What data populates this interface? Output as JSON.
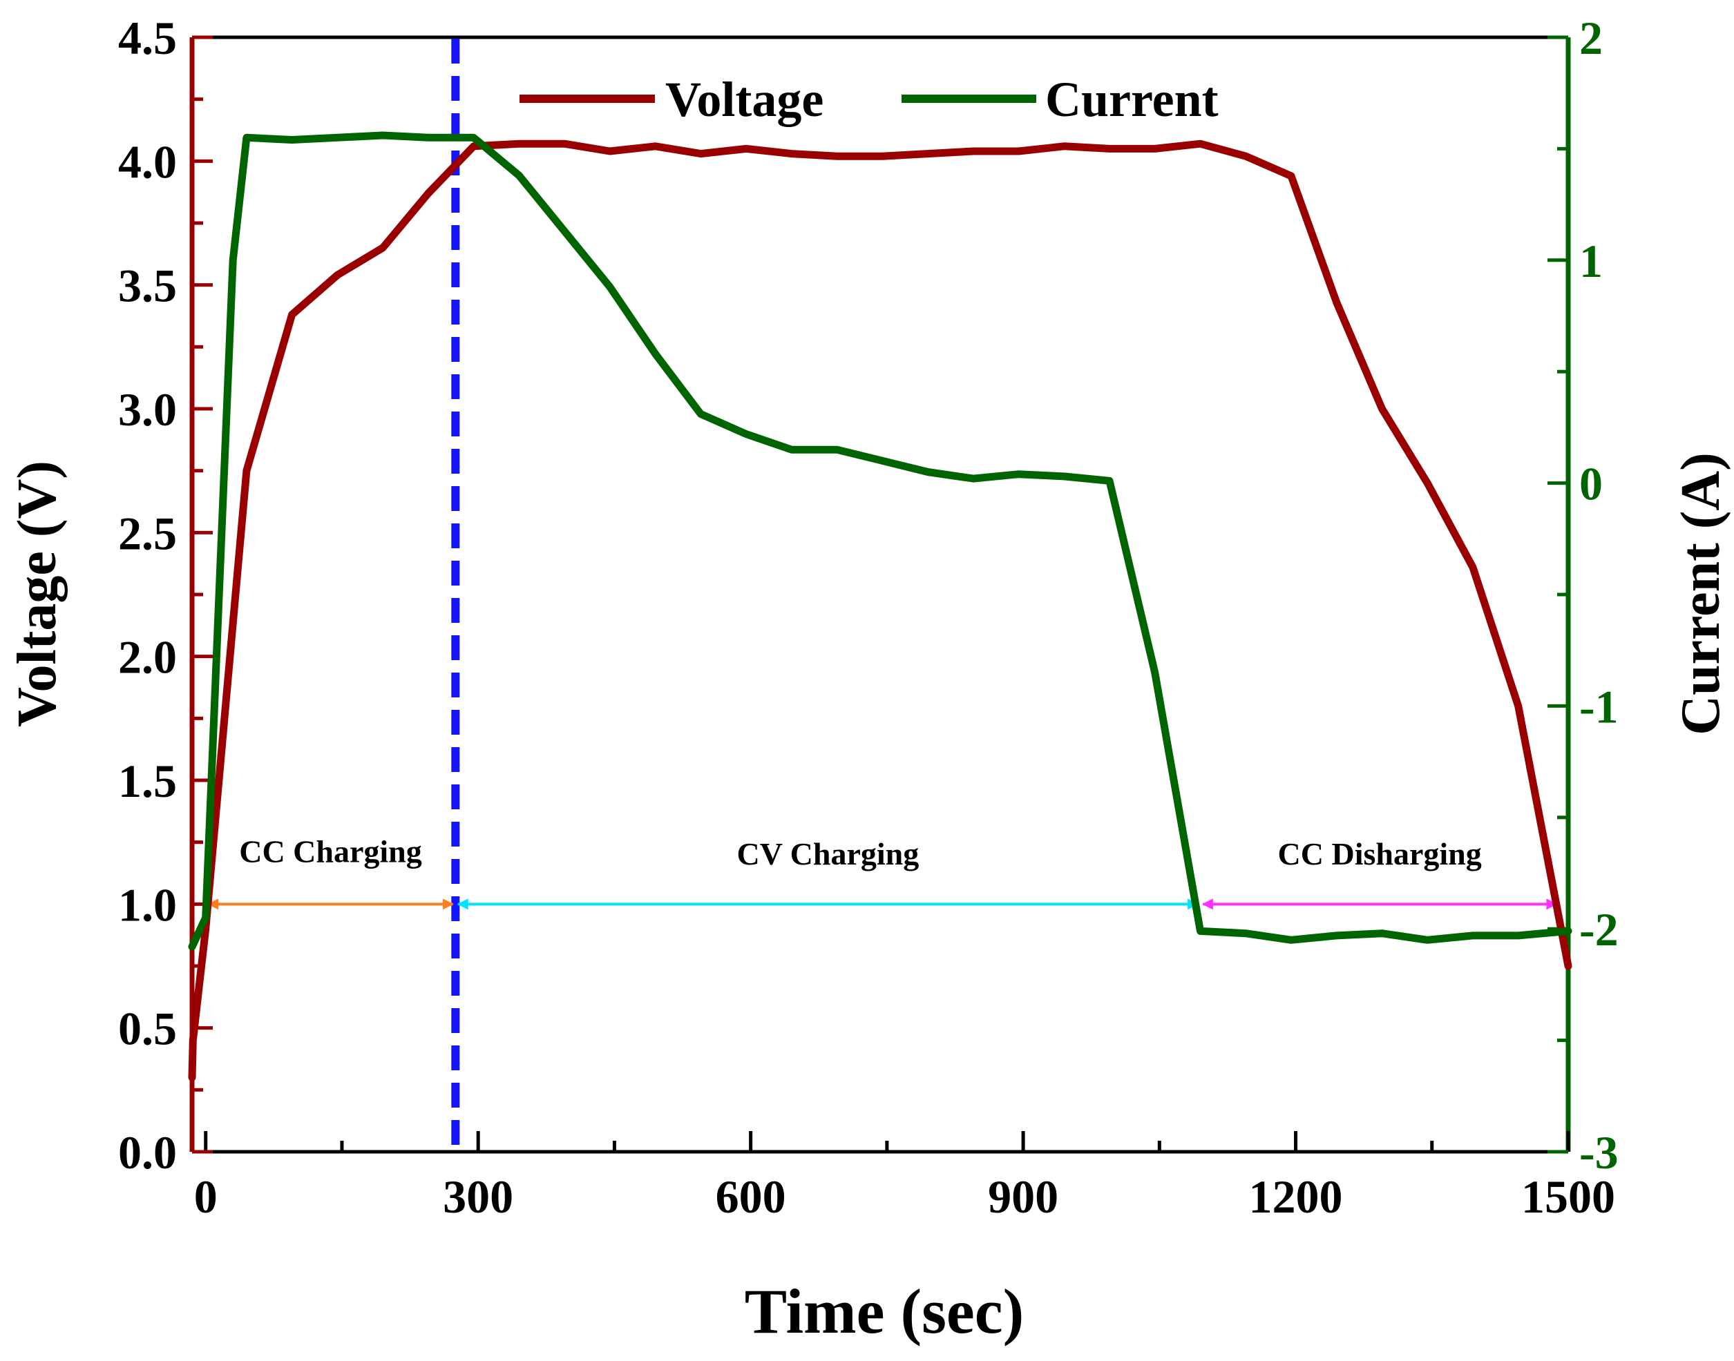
{
  "chart_data": {
    "type": "line",
    "xlabel": "Time (sec)",
    "xlim": [
      -15,
      1500
    ],
    "xticks": [
      0,
      300,
      600,
      900,
      1200,
      1500
    ],
    "y_left": {
      "label": "Voltage (V)",
      "range": [
        0,
        4.5
      ],
      "ticks": [
        "0.0",
        "0.5",
        "1.0",
        "1.5",
        "2.0",
        "2.5",
        "3.0",
        "3.5",
        "4.0",
        "4.5"
      ],
      "color": "#9b0000"
    },
    "y_right": {
      "label": "Current (A)",
      "range": [
        -3,
        2
      ],
      "ticks": [
        "-3",
        "-2",
        "-1",
        "0",
        "1",
        "2"
      ],
      "color": "#006400"
    },
    "legend": {
      "position": "top-center",
      "entries": [
        "Voltage",
        "Current"
      ]
    },
    "series": [
      {
        "name": "Voltage",
        "axis": "left",
        "color": "#9b0000",
        "x": [
          -15,
          -14,
          0,
          45,
          95,
          145,
          195,
          245,
          295,
          345,
          395,
          445,
          495,
          545,
          595,
          645,
          695,
          745,
          795,
          845,
          895,
          945,
          995,
          1045,
          1095,
          1145,
          1195,
          1245,
          1295,
          1345,
          1395,
          1445,
          1500
        ],
        "values": [
          0.3,
          0.45,
          0.9,
          2.75,
          3.38,
          3.54,
          3.65,
          3.87,
          4.06,
          4.07,
          4.07,
          4.04,
          4.06,
          4.03,
          4.05,
          4.03,
          4.02,
          4.02,
          4.03,
          4.04,
          4.04,
          4.06,
          4.05,
          4.05,
          4.07,
          4.02,
          3.94,
          3.43,
          3.0,
          2.7,
          2.36,
          1.8,
          0.75
        ]
      },
      {
        "name": "Current",
        "axis": "right",
        "color": "#006400",
        "x": [
          -15,
          0,
          30,
          45,
          95,
          145,
          195,
          245,
          295,
          345,
          395,
          445,
          495,
          545,
          595,
          645,
          695,
          745,
          795,
          845,
          895,
          945,
          995,
          1045,
          1095,
          1145,
          1195,
          1245,
          1295,
          1345,
          1395,
          1445,
          1500
        ],
        "values": [
          -2.08,
          -1.95,
          1.0,
          1.55,
          1.54,
          1.55,
          1.56,
          1.55,
          1.55,
          1.38,
          1.13,
          0.88,
          0.58,
          0.31,
          0.22,
          0.15,
          0.15,
          0.1,
          0.05,
          0.02,
          0.04,
          0.03,
          0.01,
          -0.85,
          -2.01,
          -2.02,
          -2.05,
          -2.03,
          -2.02,
          -2.05,
          -2.03,
          -2.03,
          -2.01
        ]
      }
    ],
    "reference_line": {
      "x": 275,
      "style": "dashed",
      "color": "#1414ff"
    },
    "phases": [
      {
        "label": "CC Charging",
        "x_start": 0,
        "x_end": 275,
        "y": 1.0,
        "label_y": 1.17,
        "color": "#ff7f1e"
      },
      {
        "label": "CV Charging",
        "x_start": 275,
        "x_end": 1095,
        "y": 1.0,
        "label_y": 1.16,
        "color": "#00e5ff"
      },
      {
        "label": "CC Disharging",
        "x_start": 1095,
        "x_end": 1490,
        "y": 1.0,
        "label_y": 1.16,
        "color": "#ff30ff"
      }
    ]
  }
}
